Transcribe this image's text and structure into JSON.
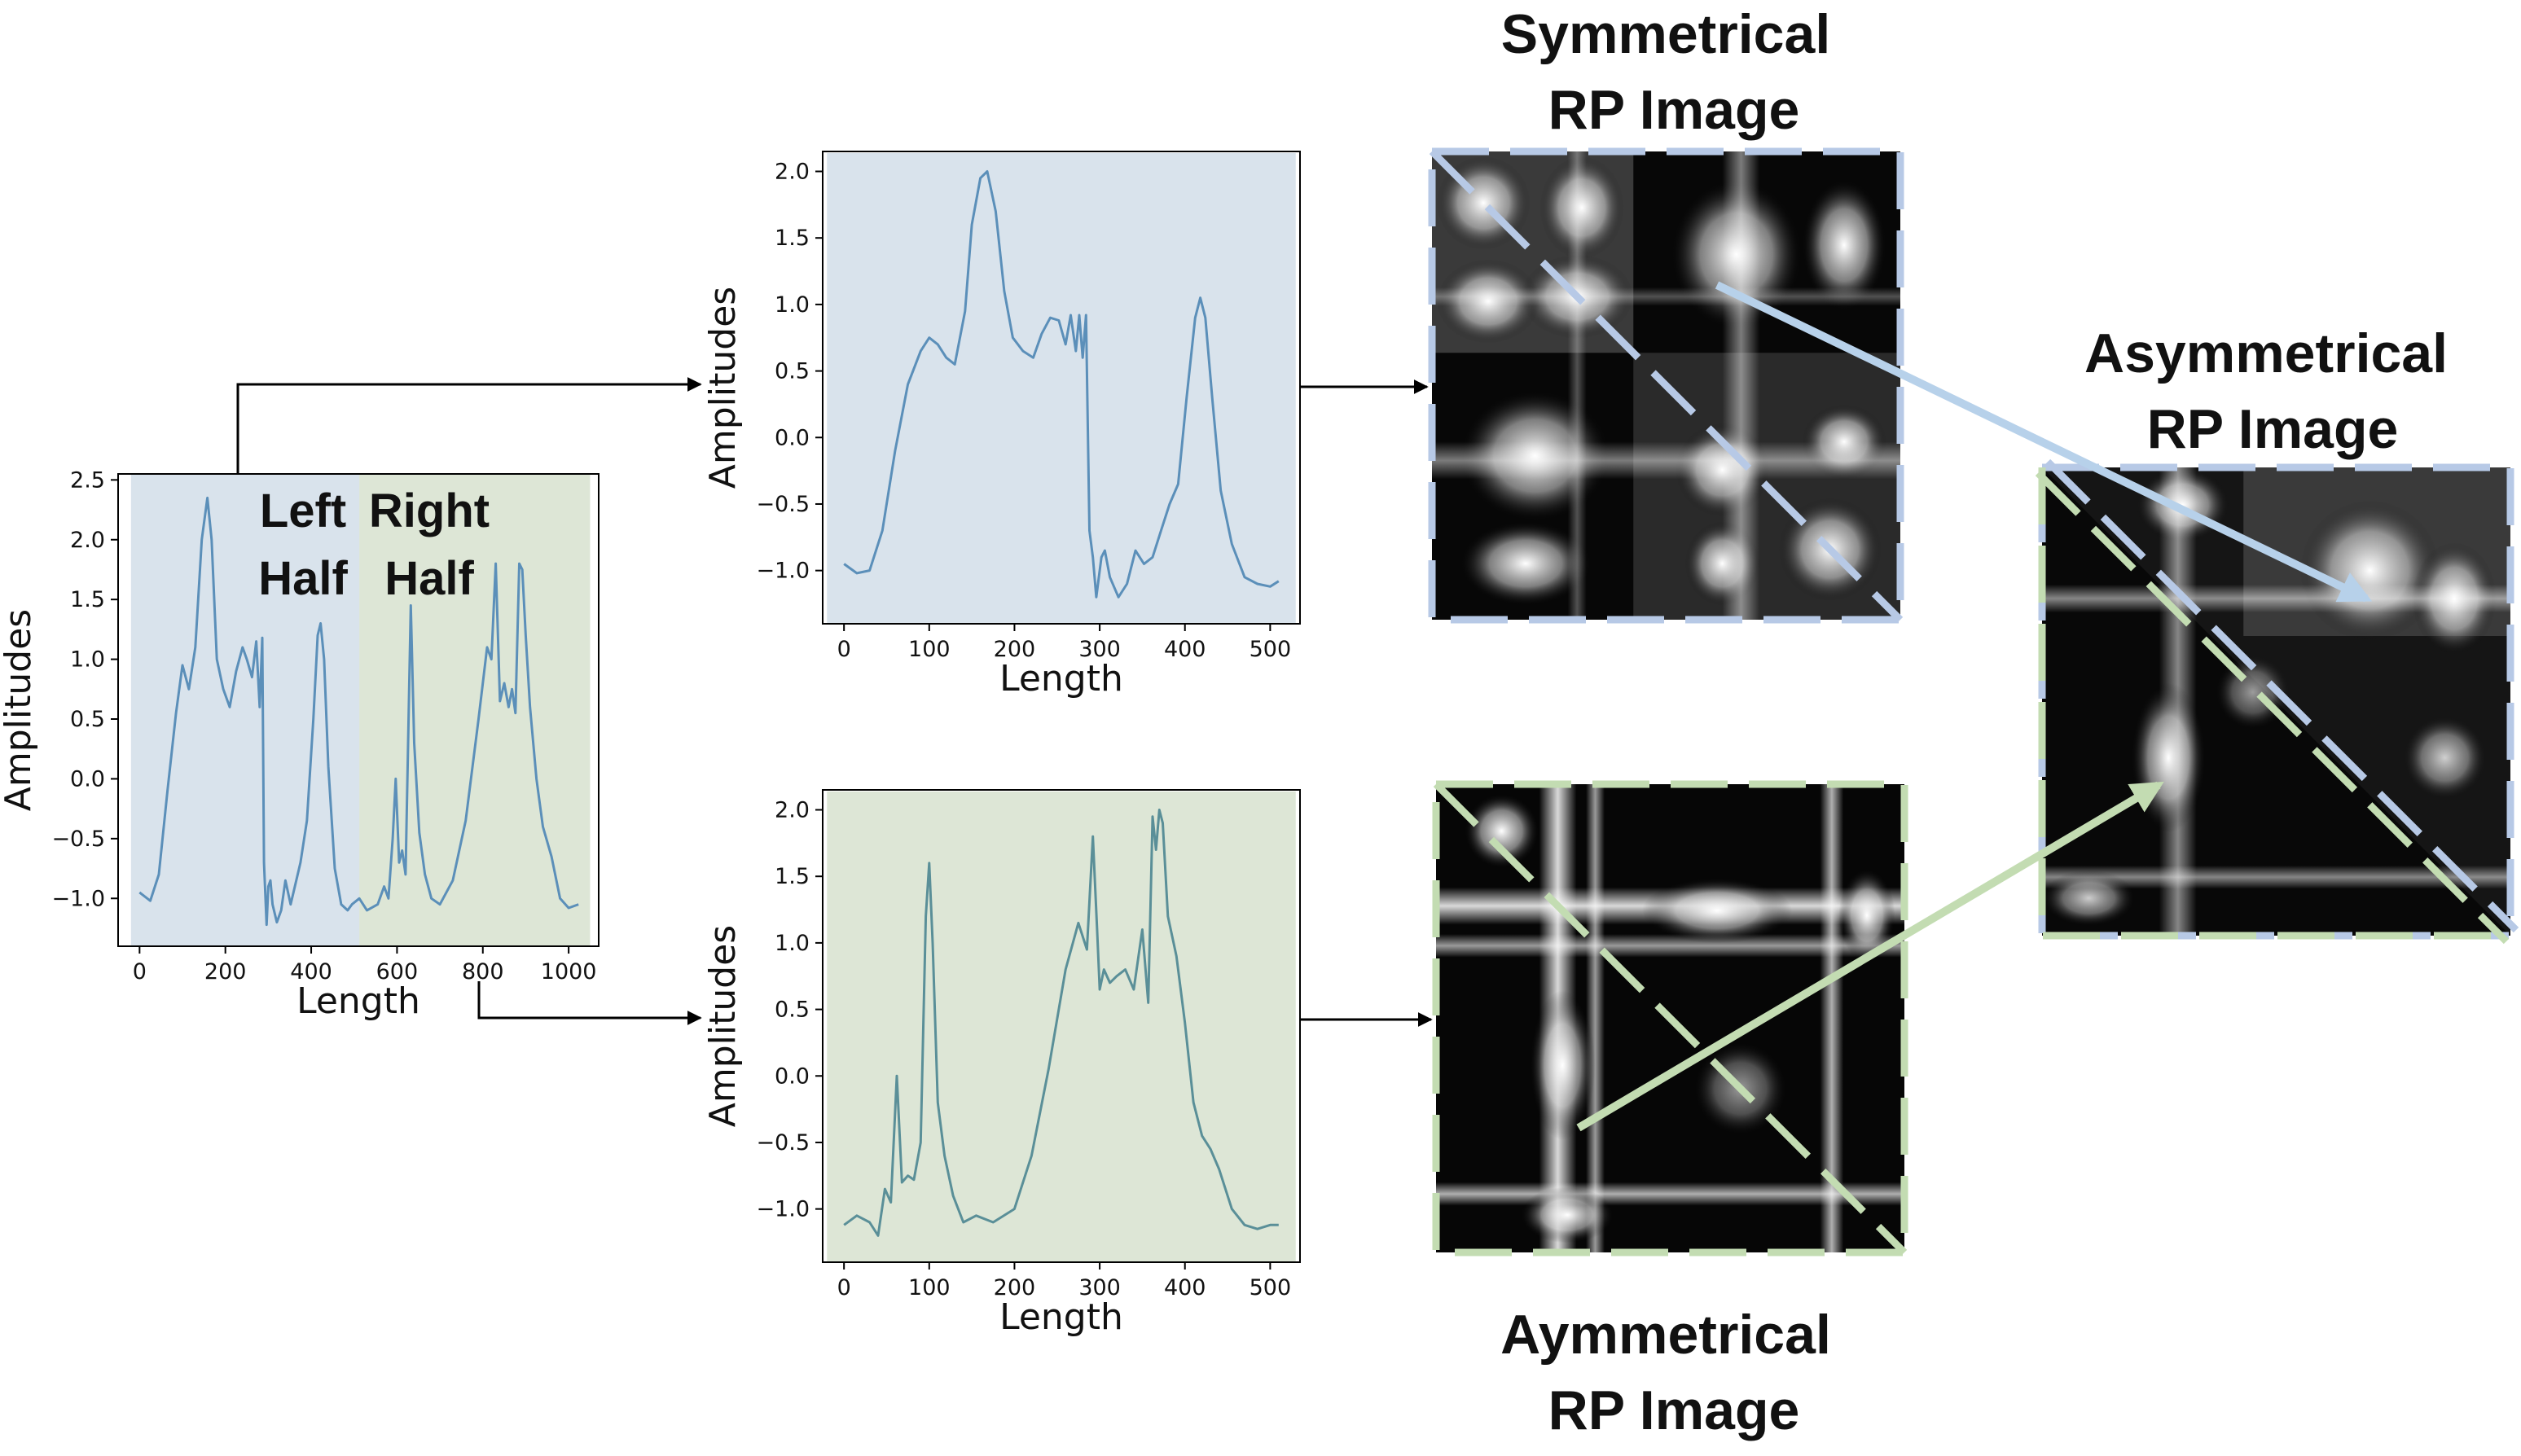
{
  "titles": {
    "symmetrical_line1": "Symmetrical",
    "symmetrical_line2": "RP Image",
    "asymmetrical_line1": "Asymmetrical",
    "asymmetrical_line2": "RP Image",
    "aymmetrical_line1": "Aymmetrical",
    "aymmetrical_line2": "RP Image"
  },
  "halves": {
    "left_line1": "Left",
    "left_line2": "Half",
    "right_line1": "Right",
    "right_line2": "Half"
  },
  "colors": {
    "blue_bg": "#d9e3ec",
    "green_bg": "#dde6d6",
    "blue_line": "#5b8fb9",
    "green_line": "#5a8f98",
    "blue_frame": "#b7c9e6",
    "green_frame": "#c3dcb2",
    "arrow": "#000000"
  },
  "chart_data": [
    {
      "id": "full_signal",
      "type": "line",
      "xlabel": "Length",
      "ylabel": "Amplitudes",
      "xlim": [
        -50,
        1070
      ],
      "ylim": [
        -1.4,
        2.55
      ],
      "xticks": [
        0,
        200,
        400,
        600,
        800,
        1000
      ],
      "yticks": [
        -1.0,
        -0.5,
        0.0,
        0.5,
        1.0,
        1.5,
        2.0,
        2.5
      ],
      "x": [
        0,
        25,
        45,
        65,
        85,
        100,
        115,
        130,
        145,
        158,
        168,
        180,
        195,
        210,
        225,
        240,
        250,
        262,
        272,
        280,
        286,
        290,
        296,
        300,
        305,
        310,
        320,
        330,
        340,
        352,
        362,
        375,
        390,
        405,
        415,
        422,
        430,
        440,
        455,
        470,
        485,
        495,
        512,
        530,
        555,
        570,
        580,
        590,
        597,
        605,
        612,
        620,
        632,
        640,
        652,
        665,
        680,
        700,
        730,
        760,
        790,
        810,
        820,
        830,
        840,
        850,
        860,
        868,
        876,
        885,
        892,
        900,
        910,
        925,
        940,
        960,
        980,
        1000,
        1023
      ],
      "y": [
        -0.95,
        -1.02,
        -0.8,
        -0.1,
        0.55,
        0.95,
        0.75,
        1.1,
        2.0,
        2.35,
        2.0,
        1.0,
        0.75,
        0.6,
        0.9,
        1.1,
        1.0,
        0.85,
        1.15,
        0.6,
        1.18,
        -0.7,
        -1.22,
        -0.9,
        -0.85,
        -1.05,
        -1.2,
        -1.1,
        -0.85,
        -1.05,
        -0.9,
        -0.7,
        -0.35,
        0.5,
        1.2,
        1.3,
        1.0,
        0.1,
        -0.75,
        -1.05,
        -1.1,
        -1.05,
        -1.0,
        -1.1,
        -1.05,
        -0.9,
        -1.0,
        -0.5,
        0.0,
        -0.7,
        -0.6,
        -0.8,
        1.45,
        0.3,
        -0.45,
        -0.8,
        -1.0,
        -1.05,
        -0.85,
        -0.35,
        0.5,
        1.1,
        1.0,
        1.8,
        0.65,
        0.8,
        0.6,
        0.75,
        0.55,
        1.8,
        1.75,
        1.2,
        0.6,
        0.0,
        -0.4,
        -0.65,
        -1.0,
        -1.08,
        -1.05
      ],
      "regions": [
        {
          "from": -20,
          "to": 512,
          "color": "#d9e3ec"
        },
        {
          "from": 512,
          "to": 1050,
          "color": "#dde6d6"
        }
      ],
      "line_color": "#5b8fb9"
    },
    {
      "id": "left_half",
      "type": "line",
      "xlabel": "Length",
      "ylabel": "Amplitudes",
      "xlim": [
        -25,
        535
      ],
      "ylim": [
        -1.4,
        2.15
      ],
      "xticks": [
        0,
        100,
        200,
        300,
        400,
        500
      ],
      "yticks": [
        -1.0,
        -0.5,
        0.0,
        0.5,
        1.0,
        1.5,
        2.0
      ],
      "x": [
        0,
        15,
        30,
        45,
        60,
        75,
        90,
        100,
        110,
        120,
        130,
        142,
        150,
        160,
        168,
        178,
        188,
        198,
        210,
        222,
        232,
        242,
        252,
        260,
        266,
        272,
        276,
        280,
        284,
        288,
        292,
        296,
        302,
        306,
        312,
        322,
        332,
        342,
        352,
        362,
        372,
        382,
        392,
        402,
        412,
        418,
        424,
        432,
        442,
        455,
        470,
        485,
        500,
        510
      ],
      "y": [
        -0.95,
        -1.02,
        -1.0,
        -0.7,
        -0.1,
        0.4,
        0.65,
        0.75,
        0.7,
        0.6,
        0.55,
        0.95,
        1.6,
        1.95,
        2.0,
        1.7,
        1.1,
        0.75,
        0.65,
        0.6,
        0.78,
        0.9,
        0.88,
        0.7,
        0.92,
        0.65,
        0.92,
        0.6,
        0.92,
        -0.7,
        -0.9,
        -1.2,
        -0.9,
        -0.85,
        -1.05,
        -1.2,
        -1.1,
        -0.85,
        -0.95,
        -0.9,
        -0.7,
        -0.5,
        -0.35,
        0.3,
        0.9,
        1.05,
        0.9,
        0.3,
        -0.4,
        -0.8,
        -1.05,
        -1.1,
        -1.12,
        -1.08
      ],
      "region_color": "#d9e3ec",
      "line_color": "#5b8fb9"
    },
    {
      "id": "right_half",
      "type": "line",
      "xlabel": "Length",
      "ylabel": "Amplitudes",
      "xlim": [
        -25,
        535
      ],
      "ylim": [
        -1.4,
        2.15
      ],
      "xticks": [
        0,
        100,
        200,
        300,
        400,
        500
      ],
      "yticks": [
        -1.0,
        -0.5,
        0.0,
        0.5,
        1.0,
        1.5,
        2.0
      ],
      "x": [
        0,
        15,
        30,
        40,
        48,
        55,
        62,
        68,
        75,
        82,
        90,
        96,
        100,
        104,
        110,
        118,
        128,
        140,
        155,
        175,
        200,
        220,
        240,
        260,
        275,
        285,
        292,
        297,
        300,
        305,
        312,
        320,
        330,
        340,
        350,
        357,
        362,
        366,
        370,
        374,
        380,
        390,
        400,
        410,
        420,
        430,
        440,
        455,
        470,
        485,
        500,
        510
      ],
      "y": [
        -1.12,
        -1.05,
        -1.1,
        -1.2,
        -0.85,
        -0.95,
        0.0,
        -0.8,
        -0.75,
        -0.78,
        -0.5,
        1.2,
        1.6,
        1.0,
        -0.2,
        -0.6,
        -0.9,
        -1.1,
        -1.05,
        -1.1,
        -1.0,
        -0.6,
        0.05,
        0.8,
        1.15,
        0.95,
        1.8,
        1.1,
        0.65,
        0.8,
        0.7,
        0.75,
        0.8,
        0.65,
        1.1,
        0.55,
        1.95,
        1.7,
        2.0,
        1.9,
        1.2,
        0.9,
        0.4,
        -0.2,
        -0.45,
        -0.55,
        -0.7,
        -1.0,
        -1.12,
        -1.15,
        -1.12,
        -1.12
      ],
      "region_color": "#dde6d6",
      "line_color": "#5a8f98"
    }
  ]
}
